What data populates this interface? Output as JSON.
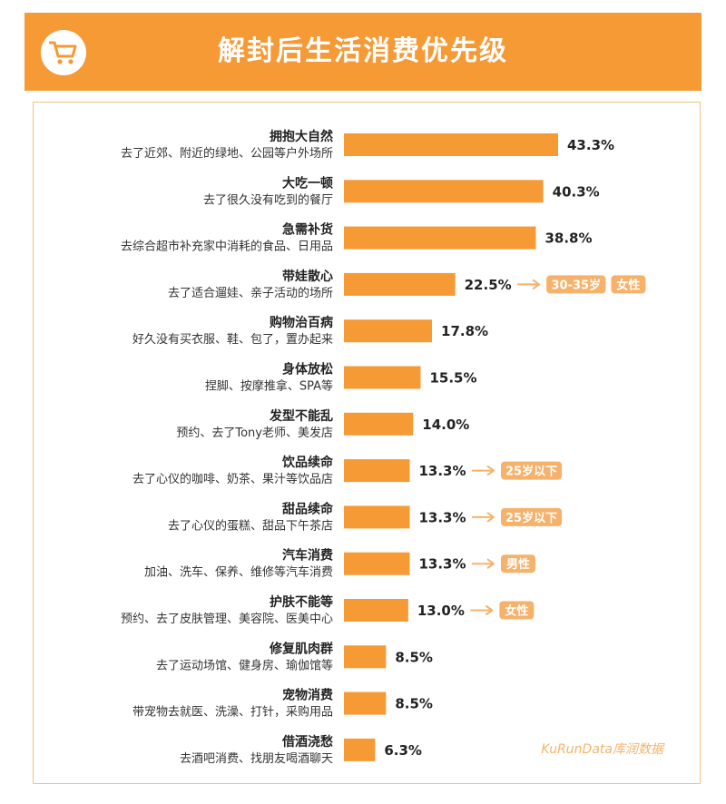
{
  "header": {
    "title": "解封后生活消费优先级",
    "icon": "shopping-cart-icon"
  },
  "watermark": "KuRunData库润数据",
  "colors": {
    "accent": "#f59a35",
    "tag": "#f6b26b",
    "border": "#f3c08a"
  },
  "chart_data": {
    "type": "bar",
    "orientation": "horizontal",
    "title": "解封后生活消费优先级",
    "unit": "%",
    "xlim": [
      0,
      43.3
    ],
    "categories": [
      {
        "title": "拥抱大自然",
        "desc": "去了近郊、附近的绿地、公园等户外场所"
      },
      {
        "title": "大吃一顿",
        "desc": "去了很久没有吃到的餐厅"
      },
      {
        "title": "急需补货",
        "desc": "去综合超市补充家中消耗的食品、日用品"
      },
      {
        "title": "带娃散心",
        "desc": "去了适合遛娃、亲子活动的场所"
      },
      {
        "title": "购物治百病",
        "desc": "好久没有买衣服、鞋、包了，置办起来"
      },
      {
        "title": "身体放松",
        "desc": "捏脚、按摩推拿、SPA等"
      },
      {
        "title": "发型不能乱",
        "desc": "预约、去了Tony老师、美发店"
      },
      {
        "title": "饮品续命",
        "desc": "去了心仪的咖啡、奶茶、果汁等饮品店"
      },
      {
        "title": "甜品续命",
        "desc": "去了心仪的蛋糕、甜品下午茶店"
      },
      {
        "title": "汽车消费",
        "desc": "加油、洗车、保养、维修等汽车消费"
      },
      {
        "title": "护肤不能等",
        "desc": "预约、去了皮肤管理、美容院、医美中心"
      },
      {
        "title": "修复肌肉群",
        "desc": "去了运动场馆、健身房、瑜伽馆等"
      },
      {
        "title": "宠物消费",
        "desc": "带宠物去就医、洗澡、打针，采购用品"
      },
      {
        "title": "借酒浇愁",
        "desc": "去酒吧消费、找朋友喝酒聊天"
      }
    ],
    "values": [
      43.3,
      40.3,
      38.8,
      22.5,
      17.8,
      15.5,
      14.0,
      13.3,
      13.3,
      13.3,
      13.0,
      8.5,
      8.5,
      6.3
    ],
    "value_labels": [
      "43.3%",
      "40.3%",
      "38.8%",
      "22.5%",
      "17.8%",
      "15.5%",
      "14.0%",
      "13.3%",
      "13.3%",
      "13.3%",
      "13.0%",
      "8.5%",
      "8.5%",
      "6.3%"
    ],
    "annotations": [
      {
        "row": 3,
        "tags": [
          "30-35岁",
          "女性"
        ]
      },
      {
        "row": 7,
        "tags": [
          "25岁以下"
        ]
      },
      {
        "row": 8,
        "tags": [
          "25岁以下"
        ]
      },
      {
        "row": 9,
        "tags": [
          "男性"
        ]
      },
      {
        "row": 10,
        "tags": [
          "女性"
        ]
      }
    ]
  }
}
